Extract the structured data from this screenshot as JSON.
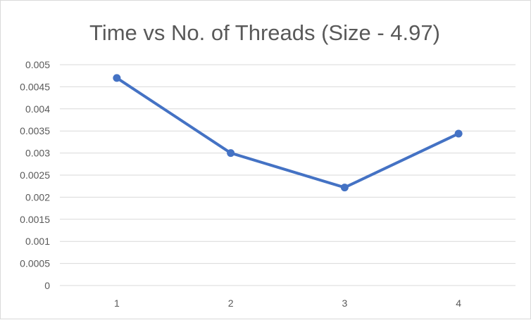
{
  "chart_data": {
    "type": "line",
    "title": "Time vs No. of Threads (Size - 4.97)",
    "xlabel": "",
    "ylabel": "",
    "categories": [
      "1",
      "2",
      "3",
      "4"
    ],
    "series": [
      {
        "values": [
          0.0047,
          0.003,
          0.00222,
          0.00344
        ]
      }
    ],
    "ylim": [
      0,
      0.005
    ],
    "yticks": [
      "0",
      "0.0005",
      "0.001",
      "0.0015",
      "0.002",
      "0.0025",
      "0.003",
      "0.0035",
      "0.004",
      "0.0045",
      "0.005"
    ],
    "grid": true,
    "legend": "none",
    "colors": {
      "line": "#4472c4",
      "grid": "#d9d9d9",
      "text": "#595959"
    }
  }
}
